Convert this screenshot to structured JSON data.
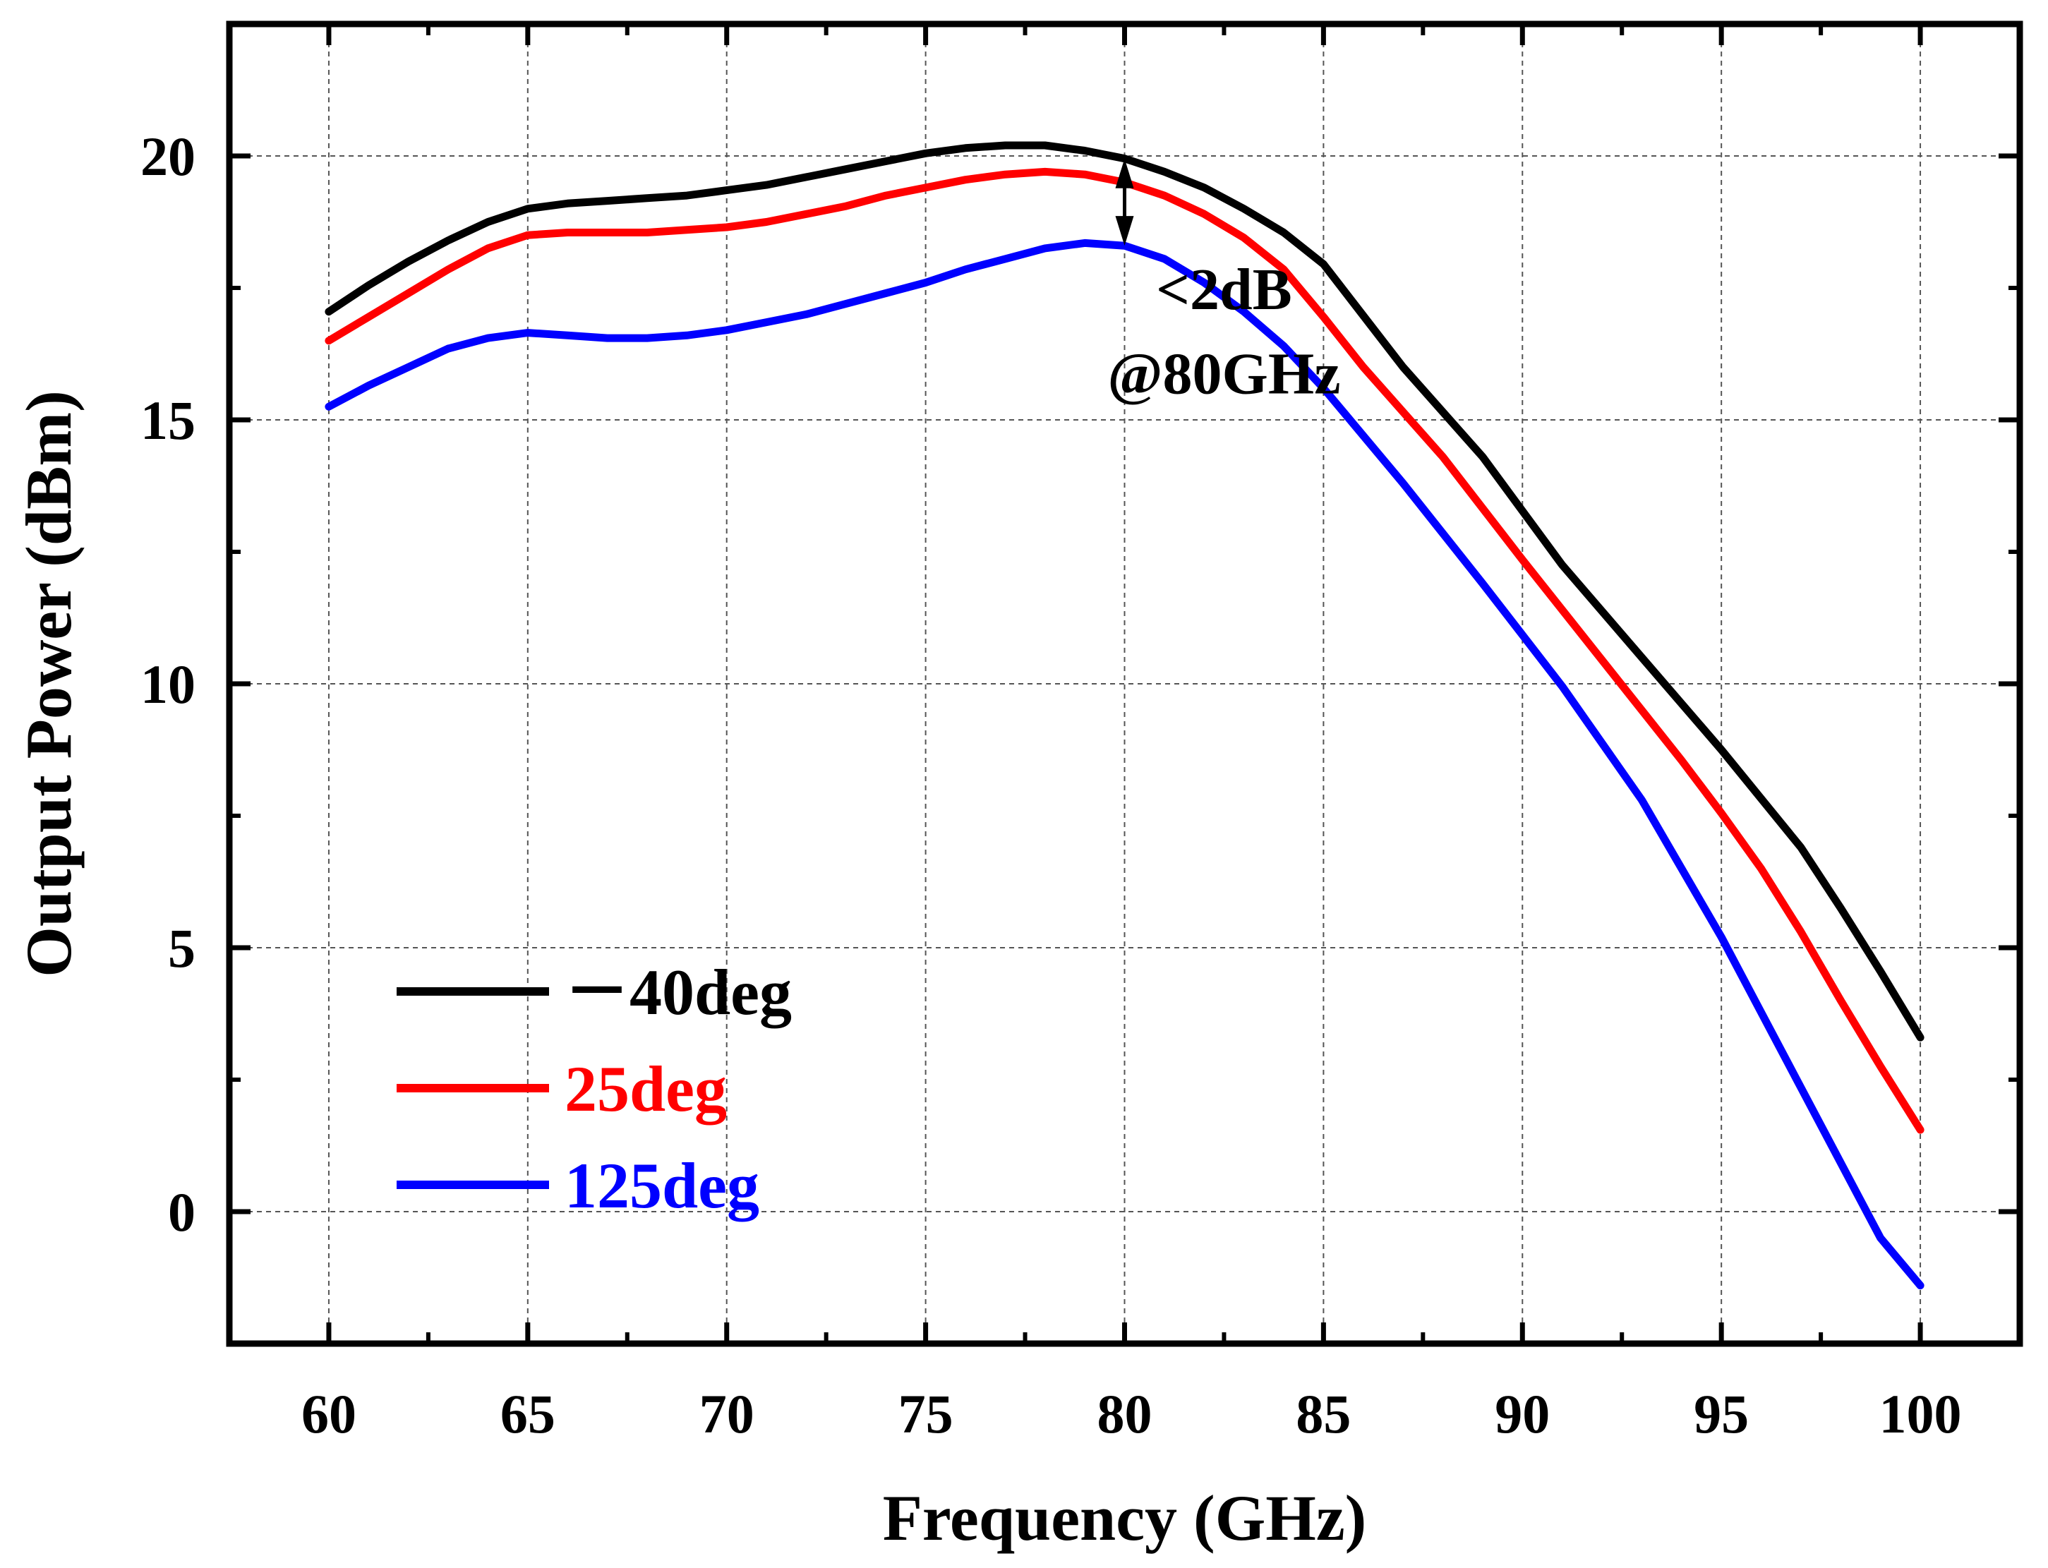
{
  "chart_data": {
    "type": "line",
    "title": "",
    "xlabel": "Frequency (GHz)",
    "ylabel": "Output Power (dBm)",
    "xlim": [
      57.5,
      102.5
    ],
    "ylim": [
      -2.5,
      22.5
    ],
    "xticks": [
      60,
      65,
      70,
      75,
      80,
      85,
      90,
      95,
      100
    ],
    "xtick_labels": [
      "60",
      "65",
      "70",
      "75",
      "80",
      "85",
      "90",
      "95",
      "100"
    ],
    "yticks": [
      0,
      5,
      10,
      15,
      20
    ],
    "ytick_labels": [
      "0",
      "5",
      "10",
      "15",
      "20"
    ],
    "grid": true,
    "legend_position": "bottom-left",
    "series": [
      {
        "name": "－40deg",
        "color": "#000000",
        "x": [
          60,
          61,
          62,
          63,
          64,
          65,
          66,
          67,
          68,
          69,
          70,
          71,
          72,
          73,
          74,
          75,
          76,
          77,
          78,
          79,
          80,
          81,
          82,
          83,
          84,
          85,
          87,
          89,
          91,
          93,
          95,
          97,
          98,
          99,
          100
        ],
        "y": [
          17.05,
          17.55,
          18.0,
          18.4,
          18.75,
          19.0,
          19.1,
          19.15,
          19.2,
          19.25,
          19.35,
          19.45,
          19.6,
          19.75,
          19.9,
          20.05,
          20.15,
          20.2,
          20.2,
          20.1,
          19.95,
          19.7,
          19.4,
          19.0,
          18.55,
          17.95,
          16.0,
          14.3,
          12.25,
          10.5,
          8.75,
          6.9,
          5.75,
          4.55,
          3.3
        ]
      },
      {
        "name": "25deg",
        "color": "#ff0000",
        "x": [
          60,
          61,
          62,
          63,
          64,
          65,
          66,
          67,
          68,
          69,
          70,
          71,
          72,
          73,
          74,
          75,
          76,
          77,
          78,
          79,
          80,
          81,
          82,
          83,
          84,
          85,
          86,
          88,
          90,
          92,
          94,
          95,
          96,
          97,
          98,
          99,
          100
        ],
        "y": [
          16.5,
          16.95,
          17.4,
          17.85,
          18.25,
          18.5,
          18.55,
          18.55,
          18.55,
          18.6,
          18.65,
          18.75,
          18.9,
          19.05,
          19.25,
          19.4,
          19.55,
          19.65,
          19.7,
          19.65,
          19.5,
          19.25,
          18.9,
          18.45,
          17.85,
          16.95,
          16.0,
          14.3,
          12.35,
          10.45,
          8.55,
          7.55,
          6.5,
          5.3,
          4.0,
          2.75,
          1.55
        ]
      },
      {
        "name": "125deg",
        "color": "#0000ff",
        "x": [
          60,
          61,
          62,
          63,
          64,
          65,
          66,
          67,
          68,
          69,
          70,
          71,
          72,
          73,
          74,
          75,
          76,
          77,
          78,
          79,
          80,
          81,
          82,
          83,
          84,
          85,
          87,
          89,
          91,
          93,
          95,
          97,
          99,
          100
        ],
        "y": [
          15.25,
          15.65,
          16.0,
          16.35,
          16.55,
          16.65,
          16.6,
          16.55,
          16.55,
          16.6,
          16.7,
          16.85,
          17.0,
          17.2,
          17.4,
          17.6,
          17.85,
          18.05,
          18.25,
          18.35,
          18.3,
          18.05,
          17.6,
          17.05,
          16.4,
          15.6,
          13.8,
          11.9,
          9.95,
          7.8,
          5.2,
          2.35,
          -0.5,
          -1.4
        ]
      }
    ],
    "annotations": [
      {
        "text": "<2dB",
        "x": 82.5,
        "y": 17.1
      },
      {
        "text": "@80GHz",
        "x": 82.5,
        "y": 15.5
      },
      {
        "type": "double-arrow",
        "x": 80,
        "y_from": 19.95,
        "y_to": 18.3
      }
    ]
  }
}
